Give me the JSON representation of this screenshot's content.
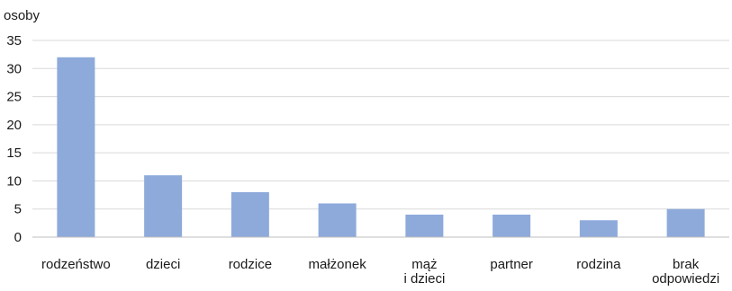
{
  "chart_data": {
    "type": "bar",
    "ylabel": "osoby",
    "ylim": [
      0,
      35
    ],
    "yticks": [
      0,
      5,
      10,
      15,
      20,
      25,
      30,
      35
    ],
    "grid": true,
    "categories": [
      [
        "rodzeństwo"
      ],
      [
        "dzieci"
      ],
      [
        "rodzice"
      ],
      [
        "małżonek"
      ],
      [
        "mąż",
        "i dzieci"
      ],
      [
        "partner"
      ],
      [
        "rodzina"
      ],
      [
        "brak",
        "odpowiedzi"
      ]
    ],
    "values": [
      32,
      11,
      8,
      6,
      4,
      4,
      3,
      5
    ],
    "colors": {
      "bar": "#8eaadb",
      "grid": "#d9d9d9",
      "axis": "#bfbfbf",
      "text": "#1a1a1a"
    }
  }
}
